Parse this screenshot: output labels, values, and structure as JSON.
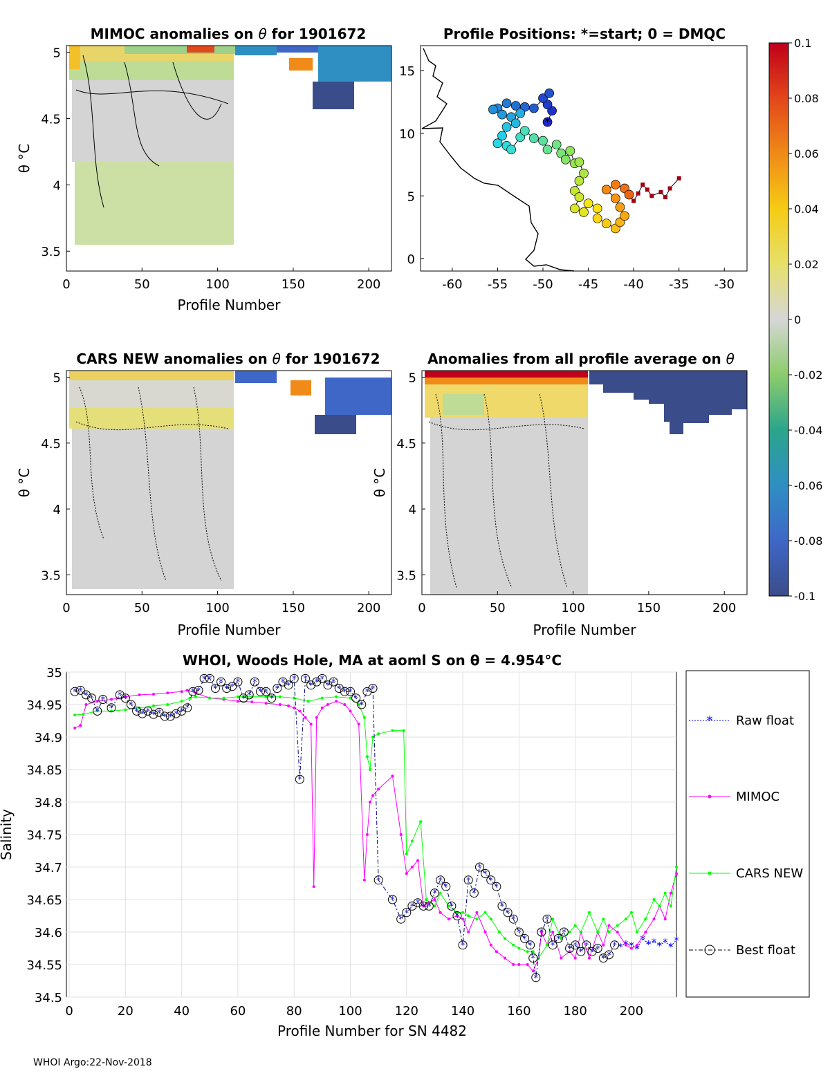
{
  "footer": "WHOI Argo:22-Nov-2018",
  "panels": {
    "mimoc": {
      "title_prefix": "MIMOC anomalies on ",
      "theta": "θ",
      "title_suffix": "  for 1901672",
      "ylabel": "θ °C",
      "xlabel": "Profile Number",
      "xticks": [
        "0",
        "50",
        "100",
        "150",
        "200"
      ],
      "yticks": [
        "5",
        "4.5",
        "4",
        "3.5"
      ]
    },
    "positions": {
      "title": "Profile Positions: *=start; 0 = DMQC",
      "xticks": [
        "-60",
        "-55",
        "-50",
        "-45",
        "-40",
        "-35",
        "-30"
      ],
      "yticks": [
        "15",
        "10",
        "5",
        "0"
      ]
    },
    "cars": {
      "title_prefix": "CARS NEW anomalies on ",
      "theta": "θ",
      "title_suffix": " for 1901672",
      "ylabel": "θ °C",
      "xlabel": "Profile Number",
      "xticks": [
        "0",
        "50",
        "100",
        "150",
        "200"
      ],
      "yticks": [
        "5",
        "4.5",
        "4",
        "3.5"
      ]
    },
    "average": {
      "title_prefix": "Anomalies from all profile average on ",
      "theta": "θ",
      "ylabel": "θ °C",
      "xlabel": "Profile Number",
      "xticks": [
        "0",
        "50",
        "100",
        "150",
        "200"
      ],
      "yticks": [
        "5",
        "4.5",
        "4",
        "3.5"
      ]
    },
    "colorbar": {
      "ticks": [
        "0.1",
        "0.08",
        "0.06",
        "0.04",
        "0.02",
        "0",
        "-0.02",
        "-0.04",
        "-0.06",
        "-0.08",
        "-0.1"
      ]
    },
    "salinity": {
      "title": "WHOI, Woods Hole, MA at aoml S on θ = 4.954°C",
      "xlabel": "Profile Number for SN 4482",
      "ylabel": "Salinity",
      "xticks": [
        "0",
        "20",
        "40",
        "60",
        "80",
        "100",
        "120",
        "140",
        "160",
        "180",
        "200"
      ],
      "yticks": [
        "35",
        "34.95",
        "34.9",
        "34.85",
        "34.8",
        "34.75",
        "34.7",
        "34.65",
        "34.6",
        "34.55",
        "34.5"
      ],
      "legend": [
        "Raw float",
        "MIMOC",
        "CARS NEW",
        "Best float"
      ]
    }
  },
  "chart_data": [
    {
      "type": "heatmap",
      "title": "MIMOC anomalies on θ  for 1901672",
      "xlabel": "Profile Number",
      "ylabel": "θ °C",
      "xlim": [
        0,
        215
      ],
      "ylim": [
        3.35,
        5.05
      ],
      "colorbar_range": [
        -0.1,
        0.1
      ]
    },
    {
      "type": "scatter",
      "title": "Profile Positions: *=start; 0 = DMQC",
      "xlim": [
        -63.5,
        -27.5
      ],
      "ylim": [
        -1,
        17
      ],
      "color_scale": "profile order blue→red",
      "positions": [
        [
          -49.5,
          10.9
        ],
        [
          -49.0,
          11.8
        ],
        [
          -49.5,
          12.3
        ],
        [
          -50.0,
          12.8
        ],
        [
          -49.3,
          13.2
        ],
        [
          -51.0,
          12.0
        ],
        [
          -52.0,
          12.1
        ],
        [
          -53.0,
          12.2
        ],
        [
          -54.0,
          12.4
        ],
        [
          -55.0,
          12.0
        ],
        [
          -55.5,
          11.9
        ],
        [
          -54.5,
          11.5
        ],
        [
          -53.5,
          11.3
        ],
        [
          -52.5,
          11.6
        ],
        [
          -53.0,
          10.8
        ],
        [
          -54.0,
          10.5
        ],
        [
          -54.5,
          9.8
        ],
        [
          -55.0,
          9.2
        ],
        [
          -54.0,
          9.0
        ],
        [
          -53.5,
          8.7
        ],
        [
          -52.5,
          9.7
        ],
        [
          -52.0,
          10.2
        ],
        [
          -51.0,
          9.6
        ],
        [
          -50.0,
          9.4
        ],
        [
          -49.5,
          8.7
        ],
        [
          -48.5,
          9.1
        ],
        [
          -48.0,
          8.4
        ],
        [
          -47.5,
          7.9
        ],
        [
          -47.0,
          8.6
        ],
        [
          -46.5,
          7.6
        ],
        [
          -46.0,
          7.7
        ],
        [
          -45.5,
          6.8
        ],
        [
          -46.0,
          6.2
        ],
        [
          -46.5,
          5.4
        ],
        [
          -46.0,
          4.9
        ],
        [
          -46.5,
          4.0
        ],
        [
          -45.5,
          3.7
        ],
        [
          -45.0,
          4.4
        ],
        [
          -44.0,
          4.0
        ],
        [
          -44.0,
          3.2
        ],
        [
          -43.0,
          2.8
        ],
        [
          -42.0,
          2.4
        ],
        [
          -41.5,
          2.9
        ],
        [
          -41.0,
          3.4
        ],
        [
          -41.5,
          4.1
        ],
        [
          -42.0,
          4.8
        ],
        [
          -43.0,
          5.5
        ],
        [
          -42.0,
          5.9
        ],
        [
          -41.0,
          5.6
        ],
        [
          -40.5,
          5.1
        ],
        [
          -40.0,
          4.6
        ],
        [
          -39.5,
          5.2
        ],
        [
          -39.0,
          5.9
        ],
        [
          -38.5,
          5.5
        ],
        [
          -38.0,
          5.0
        ],
        [
          -37.0,
          5.3
        ],
        [
          -36.5,
          4.9
        ],
        [
          -36.0,
          5.6
        ],
        [
          -35.0,
          6.4
        ]
      ]
    },
    {
      "type": "heatmap",
      "title": "CARS NEW anomalies on θ for 1901672",
      "xlabel": "Profile Number",
      "ylabel": "θ °C",
      "xlim": [
        0,
        215
      ],
      "ylim": [
        3.35,
        5.05
      ],
      "colorbar_range": [
        -0.1,
        0.1
      ]
    },
    {
      "type": "heatmap",
      "title": "Anomalies from all profile average on θ",
      "xlabel": "Profile Number",
      "ylabel": "θ °C",
      "xlim": [
        0,
        215
      ],
      "ylim": [
        3.35,
        5.05
      ],
      "colorbar_range": [
        -0.1,
        0.1
      ]
    },
    {
      "type": "line",
      "title": "WHOI, Woods Hole, MA at aoml S on θ = 4.954°C",
      "xlabel": "Profile Number for SN 4482",
      "ylabel": "Salinity",
      "xlim": [
        -1,
        216
      ],
      "ylim": [
        34.5,
        35.0
      ],
      "series": [
        {
          "name": "Raw float",
          "color": "#0000ff",
          "x": [
            196,
            198,
            200,
            202,
            204,
            206,
            208,
            210,
            212,
            214,
            216
          ],
          "y": [
            34.578,
            34.582,
            34.58,
            34.575,
            34.59,
            34.582,
            34.585,
            34.58,
            34.585,
            34.578,
            34.588
          ]
        },
        {
          "name": "MIMOC",
          "color": "#ff00ff",
          "x": [
            2,
            4,
            6,
            10,
            15,
            20,
            25,
            30,
            35,
            40,
            42,
            45,
            50,
            55,
            60,
            65,
            70,
            75,
            78,
            80,
            82,
            84,
            86,
            87,
            88,
            90,
            92,
            95,
            98,
            100,
            103,
            105,
            106,
            107,
            108,
            110,
            115,
            118,
            120,
            122,
            124,
            126,
            128,
            130,
            132,
            135,
            138,
            140,
            142,
            145,
            148,
            150,
            152,
            155,
            158,
            160,
            163,
            165,
            167,
            168,
            170,
            172,
            175,
            178,
            180,
            182,
            185,
            188,
            190,
            192,
            195,
            198,
            200,
            202,
            205,
            208,
            210,
            212,
            214,
            216
          ],
          "y": [
            34.914,
            34.918,
            34.95,
            34.955,
            34.958,
            34.962,
            34.965,
            34.966,
            34.968,
            34.97,
            34.972,
            34.968,
            34.96,
            34.958,
            34.955,
            34.954,
            34.952,
            34.95,
            34.948,
            34.945,
            34.94,
            34.93,
            34.92,
            34.67,
            34.93,
            34.945,
            34.95,
            34.955,
            34.95,
            34.94,
            34.92,
            34.68,
            34.75,
            34.8,
            34.81,
            34.82,
            34.84,
            34.75,
            34.69,
            34.7,
            34.71,
            34.64,
            34.645,
            34.65,
            34.63,
            34.62,
            34.625,
            34.62,
            34.6,
            34.63,
            34.6,
            34.58,
            34.57,
            34.56,
            34.55,
            34.55,
            34.55,
            34.54,
            34.56,
            34.6,
            34.58,
            34.6,
            34.56,
            34.57,
            34.56,
            34.6,
            34.56,
            34.6,
            34.58,
            34.61,
            34.6,
            34.58,
            34.575,
            34.58,
            34.6,
            34.62,
            34.64,
            34.62,
            34.66,
            34.69
          ]
        },
        {
          "name": "CARS NEW",
          "color": "#00ff00",
          "x": [
            2,
            5,
            10,
            15,
            20,
            25,
            30,
            35,
            40,
            43,
            45,
            50,
            55,
            60,
            65,
            70,
            75,
            80,
            85,
            90,
            95,
            100,
            103,
            105,
            106,
            107,
            108,
            110,
            115,
            119,
            120,
            122,
            125,
            127,
            130,
            132,
            135,
            138,
            140,
            142,
            145,
            148,
            150,
            153,
            155,
            158,
            160,
            163,
            165,
            167,
            170,
            172,
            175,
            178,
            180,
            182,
            185,
            188,
            190,
            192,
            195,
            198,
            200,
            202,
            205,
            208,
            210,
            212,
            214,
            216
          ],
          "y": [
            34.934,
            34.935,
            34.94,
            34.94,
            34.942,
            34.945,
            34.948,
            34.95,
            34.955,
            34.96,
            34.962,
            34.96,
            34.96,
            34.962,
            34.962,
            34.962,
            34.962,
            34.96,
            34.955,
            34.96,
            34.962,
            34.96,
            34.95,
            34.93,
            34.87,
            34.85,
            34.9,
            34.905,
            34.91,
            34.91,
            34.72,
            34.74,
            34.77,
            34.65,
            34.64,
            34.66,
            34.64,
            34.63,
            34.63,
            34.625,
            34.62,
            34.63,
            34.62,
            34.6,
            34.59,
            34.58,
            34.575,
            34.57,
            34.57,
            34.56,
            34.58,
            34.62,
            34.59,
            34.6,
            34.61,
            34.6,
            34.63,
            34.6,
            34.62,
            34.6,
            34.61,
            34.62,
            34.63,
            34.6,
            34.62,
            34.65,
            34.64,
            34.66,
            34.64,
            34.7
          ]
        },
        {
          "name": "Best float",
          "color": "#000080",
          "x": [
            2,
            4,
            6,
            8,
            10,
            12,
            15,
            18,
            20,
            22,
            24,
            26,
            28,
            30,
            32,
            34,
            36,
            38,
            40,
            42,
            44,
            46,
            48,
            50,
            52,
            54,
            56,
            58,
            60,
            62,
            64,
            66,
            68,
            70,
            72,
            74,
            76,
            78,
            80,
            82,
            84,
            86,
            88,
            90,
            92,
            94,
            96,
            98,
            100,
            102,
            104,
            106,
            108,
            110,
            115,
            118,
            120,
            122,
            124,
            126,
            128,
            130,
            132,
            134,
            136,
            138,
            140,
            142,
            144,
            146,
            148,
            150,
            152,
            154,
            156,
            158,
            160,
            162,
            164,
            165,
            166,
            168,
            170,
            172,
            174,
            176,
            178,
            180,
            182,
            184,
            186,
            188,
            190,
            192,
            194
          ],
          "y": [
            34.97,
            34.972,
            34.965,
            34.96,
            34.94,
            34.958,
            34.945,
            34.965,
            34.96,
            34.95,
            34.94,
            34.936,
            34.94,
            34.935,
            34.938,
            34.932,
            34.932,
            34.936,
            34.94,
            34.945,
            34.97,
            34.972,
            34.99,
            34.99,
            34.975,
            34.985,
            34.975,
            34.978,
            34.985,
            34.96,
            34.965,
            34.985,
            34.97,
            34.97,
            34.96,
            34.975,
            34.985,
            34.98,
            34.99,
            34.835,
            34.99,
            34.98,
            34.985,
            34.99,
            34.98,
            34.985,
            34.975,
            34.97,
            34.97,
            34.96,
            34.95,
            34.97,
            34.975,
            34.68,
            34.65,
            34.62,
            34.63,
            34.64,
            34.645,
            34.64,
            34.64,
            34.66,
            34.68,
            34.67,
            34.64,
            34.625,
            34.58,
            34.68,
            34.66,
            34.7,
            34.69,
            34.68,
            34.67,
            34.64,
            34.63,
            34.62,
            34.6,
            34.59,
            34.58,
            34.56,
            34.53,
            34.6,
            34.62,
            34.58,
            34.59,
            34.6,
            34.575,
            34.58,
            34.57,
            34.58,
            34.57,
            34.575,
            34.56,
            34.565,
            34.58
          ]
        }
      ]
    }
  ]
}
